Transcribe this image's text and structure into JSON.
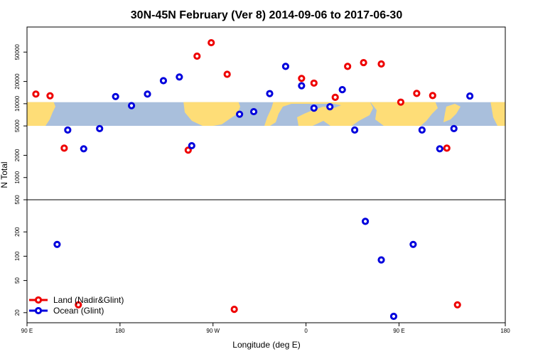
{
  "chart_data": {
    "type": "scatter",
    "title": "30N-45N February (Ver 8)   2014-09-06 to 2017-06-30",
    "xlabel": "Longitude (deg E)",
    "ylabel": "N Total",
    "yscale": "log",
    "xlim": [
      -90,
      180
    ],
    "x_ticks": [
      {
        "value": -90,
        "label": "90 E"
      },
      {
        "value": -37.5,
        "label": "180"
      },
      {
        "value": 15,
        "label": "90 W"
      },
      {
        "value": 67.5,
        "label": "0"
      },
      {
        "value": 120,
        "label": "90 E"
      },
      {
        "value": 180,
        "label": "180"
      }
    ],
    "upper_panel": {
      "ylim": [
        500,
        100000
      ],
      "y_ticks": [
        {
          "value": 50000,
          "label": "50000"
        },
        {
          "value": 20000,
          "label": "20000"
        },
        {
          "value": 10000,
          "label": "10000"
        },
        {
          "value": 5000,
          "label": "5000"
        },
        {
          "value": 2000,
          "label": "2000"
        },
        {
          "value": 1000,
          "label": "1000"
        },
        {
          "value": 500,
          "label": "500"
        }
      ],
      "map_band": {
        "y_low": 5000,
        "y_high": 10500,
        "land_color": "#FEDD77",
        "ocean_color": "#A9BFDC"
      }
    },
    "lower_panel": {
      "ylim": [
        15,
        500
      ],
      "y_ticks": [
        {
          "value": 200,
          "label": "200"
        },
        {
          "value": 100,
          "label": "100"
        },
        {
          "value": 50,
          "label": "50"
        },
        {
          "value": 20,
          "label": "20"
        }
      ]
    },
    "legend_position": "bottom-left",
    "series": [
      {
        "name": "Land (Nadir&Glint)",
        "color": "#EE0000",
        "points": [
          {
            "x": -85,
            "y": 13500,
            "panel": "upper"
          },
          {
            "x": -77,
            "y": 12800,
            "panel": "upper"
          },
          {
            "x": -69,
            "y": 2500,
            "panel": "upper"
          },
          {
            "x": -61,
            "y": 25,
            "panel": "lower"
          },
          {
            "x": 1,
            "y": 2350,
            "panel": "upper"
          },
          {
            "x": 6,
            "y": 44000,
            "panel": "upper"
          },
          {
            "x": 14,
            "y": 67000,
            "panel": "upper"
          },
          {
            "x": 23,
            "y": 25000,
            "panel": "upper"
          },
          {
            "x": 27,
            "y": 22,
            "panel": "lower"
          },
          {
            "x": 65,
            "y": 22000,
            "panel": "upper"
          },
          {
            "x": 72,
            "y": 19000,
            "panel": "upper"
          },
          {
            "x": 84,
            "y": 12200,
            "panel": "upper"
          },
          {
            "x": 91,
            "y": 32000,
            "panel": "upper"
          },
          {
            "x": 100,
            "y": 36000,
            "panel": "upper"
          },
          {
            "x": 110,
            "y": 34500,
            "panel": "upper"
          },
          {
            "x": 121,
            "y": 10500,
            "panel": "upper"
          },
          {
            "x": 130,
            "y": 13800,
            "panel": "upper"
          },
          {
            "x": 139,
            "y": 12900,
            "panel": "upper"
          },
          {
            "x": 147,
            "y": 2500,
            "panel": "upper"
          },
          {
            "x": 153,
            "y": 25,
            "panel": "lower"
          }
        ]
      },
      {
        "name": "Ocean (Glint)",
        "color": "#0000DD",
        "points": [
          {
            "x": -73,
            "y": 140,
            "panel": "lower"
          },
          {
            "x": -67,
            "y": 4400,
            "panel": "upper"
          },
          {
            "x": -58,
            "y": 2450,
            "panel": "upper"
          },
          {
            "x": -49,
            "y": 4600,
            "panel": "upper"
          },
          {
            "x": -40,
            "y": 12500,
            "panel": "upper"
          },
          {
            "x": -31,
            "y": 9400,
            "panel": "upper"
          },
          {
            "x": -22,
            "y": 13500,
            "panel": "upper"
          },
          {
            "x": -13,
            "y": 20500,
            "panel": "upper"
          },
          {
            "x": -4,
            "y": 23000,
            "panel": "upper"
          },
          {
            "x": 3,
            "y": 2700,
            "panel": "upper"
          },
          {
            "x": 30,
            "y": 7200,
            "panel": "upper"
          },
          {
            "x": 38,
            "y": 7800,
            "panel": "upper"
          },
          {
            "x": 47,
            "y": 13700,
            "panel": "upper"
          },
          {
            "x": 56,
            "y": 32000,
            "panel": "upper"
          },
          {
            "x": 65,
            "y": 17500,
            "panel": "upper"
          },
          {
            "x": 72,
            "y": 8700,
            "panel": "upper"
          },
          {
            "x": 81,
            "y": 9100,
            "panel": "upper"
          },
          {
            "x": 88,
            "y": 15500,
            "panel": "upper"
          },
          {
            "x": 95,
            "y": 4400,
            "panel": "upper"
          },
          {
            "x": 101,
            "y": 270,
            "panel": "lower"
          },
          {
            "x": 110,
            "y": 90,
            "panel": "lower"
          },
          {
            "x": 117,
            "y": 18,
            "panel": "lower"
          },
          {
            "x": 128,
            "y": 140,
            "panel": "lower"
          },
          {
            "x": 133,
            "y": 4400,
            "panel": "upper"
          },
          {
            "x": 143,
            "y": 2450,
            "panel": "upper"
          },
          {
            "x": 151,
            "y": 4600,
            "panel": "upper"
          },
          {
            "x": 160,
            "y": 12700,
            "panel": "upper"
          }
        ]
      }
    ]
  }
}
